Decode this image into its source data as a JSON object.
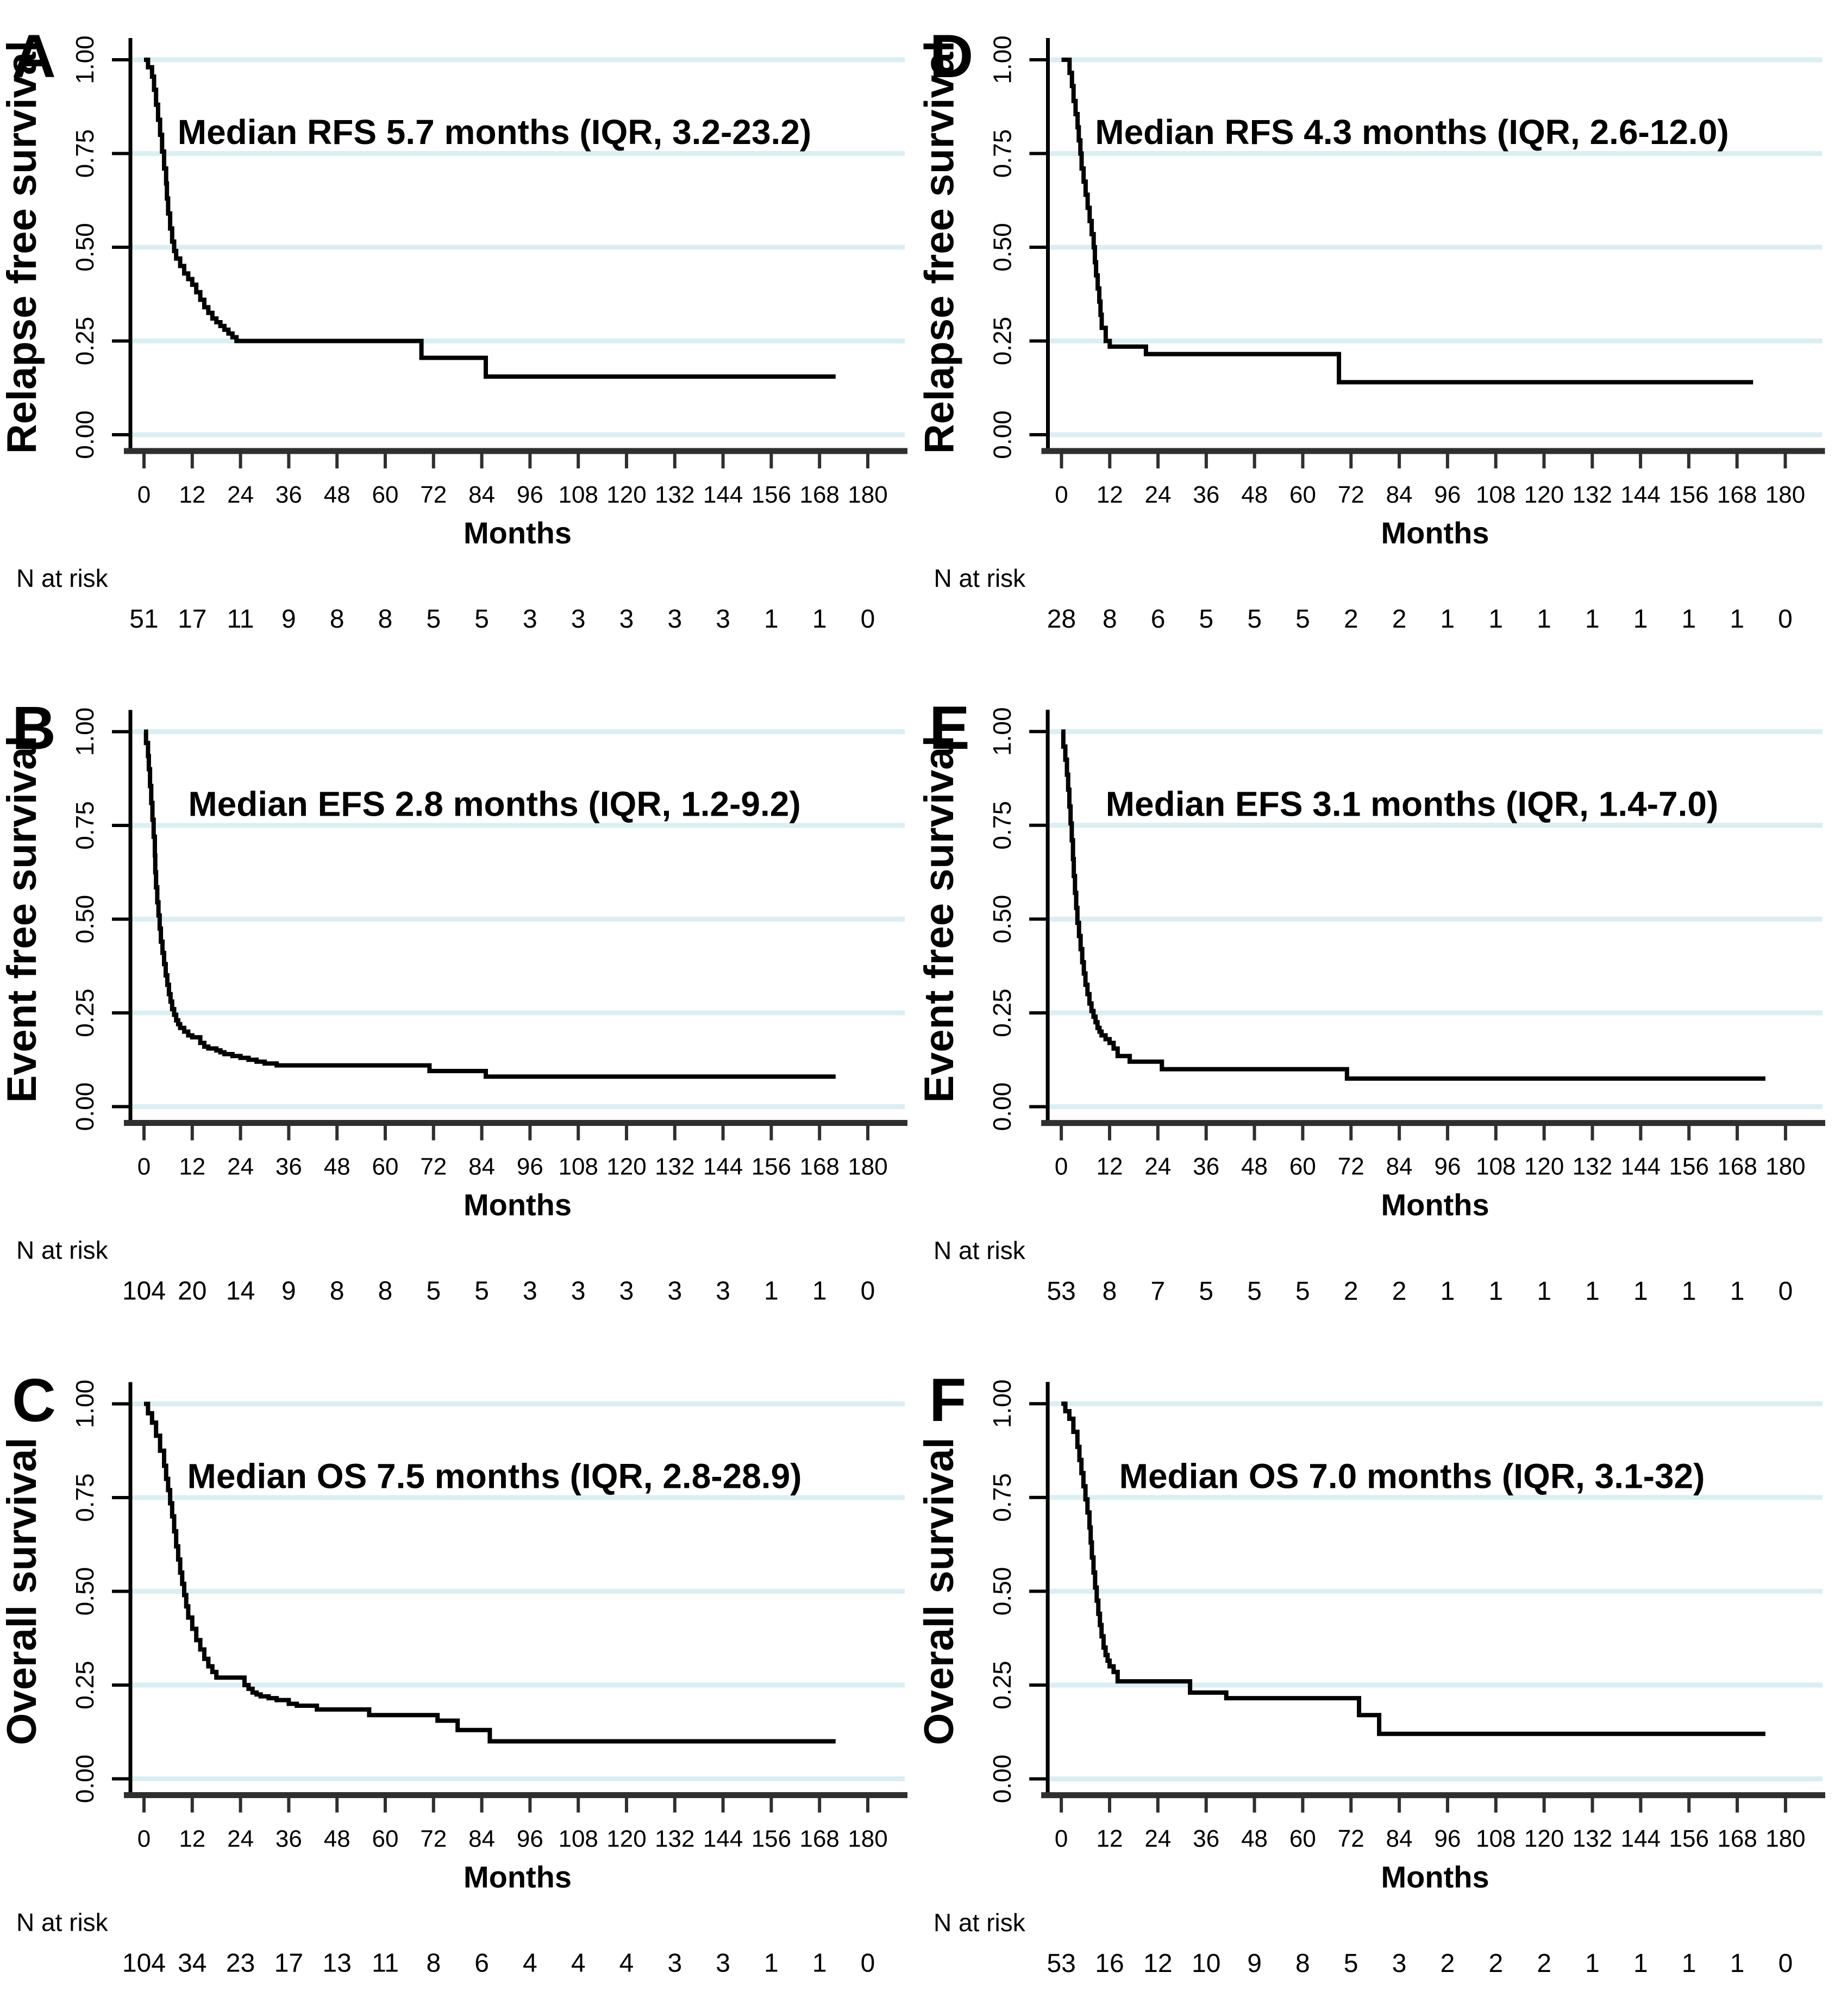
{
  "figure": {
    "type": "kaplan-meier-survival-figure",
    "background": "#ffffff",
    "colors": {
      "curve": "#000000",
      "axis": "#000000",
      "baseline": "#2f2f2f",
      "gridline": "#dceef1",
      "tick_label": "#1a1a1a",
      "text": "#000000"
    }
  },
  "chart_data": [
    {
      "type": "line",
      "panel_letter": "A",
      "ylabel": "Relapse free survival",
      "xlabel": "Months",
      "annotation": "Median RFS 5.7 months (IQR, 3.2-23.2)",
      "risk_label": "N at risk",
      "x_ticks": [
        0,
        12,
        24,
        36,
        48,
        60,
        72,
        84,
        96,
        108,
        120,
        132,
        144,
        156,
        168,
        180
      ],
      "y_tick_labels": [
        "0.00",
        "0.25",
        "0.50",
        "0.75",
        "1.00"
      ],
      "xlim": [
        0,
        180
      ],
      "ylim": [
        0,
        1
      ],
      "grid": true,
      "n_at_risk": [
        51,
        17,
        11,
        9,
        8,
        8,
        5,
        5,
        3,
        3,
        3,
        3,
        3,
        1,
        1,
        0
      ],
      "curve": [
        [
          0,
          1.0
        ],
        [
          1,
          0.98
        ],
        [
          2,
          0.955
        ],
        [
          2.5,
          0.92
        ],
        [
          3,
          0.88
        ],
        [
          3.5,
          0.84
        ],
        [
          4,
          0.8
        ],
        [
          4.5,
          0.755
        ],
        [
          5,
          0.71
        ],
        [
          5.5,
          0.67
        ],
        [
          5.7,
          0.63
        ],
        [
          6,
          0.59
        ],
        [
          6.5,
          0.55
        ],
        [
          7,
          0.515
        ],
        [
          7.5,
          0.49
        ],
        [
          8,
          0.47
        ],
        [
          9,
          0.45
        ],
        [
          10,
          0.43
        ],
        [
          11,
          0.415
        ],
        [
          12,
          0.4
        ],
        [
          13,
          0.38
        ],
        [
          14,
          0.36
        ],
        [
          15,
          0.34
        ],
        [
          16,
          0.325
        ],
        [
          17,
          0.31
        ],
        [
          18,
          0.3
        ],
        [
          19,
          0.29
        ],
        [
          20,
          0.28
        ],
        [
          21,
          0.27
        ],
        [
          22,
          0.26
        ],
        [
          23,
          0.25
        ],
        [
          69,
          0.205
        ],
        [
          85,
          0.155
        ],
        [
          172,
          0.155
        ]
      ]
    },
    {
      "type": "line",
      "panel_letter": "D",
      "ylabel": "Relapse free survival",
      "xlabel": "Months",
      "annotation": "Median RFS 4.3 months (IQR, 2.6-12.0)",
      "risk_label": "N at risk",
      "x_ticks": [
        0,
        12,
        24,
        36,
        48,
        60,
        72,
        84,
        96,
        108,
        120,
        132,
        144,
        156,
        168,
        180
      ],
      "y_tick_labels": [
        "0.00",
        "0.25",
        "0.50",
        "0.75",
        "1.00"
      ],
      "xlim": [
        0,
        180
      ],
      "ylim": [
        0,
        1
      ],
      "grid": true,
      "n_at_risk": [
        28,
        8,
        6,
        5,
        5,
        5,
        2,
        2,
        1,
        1,
        1,
        1,
        1,
        1,
        1,
        0
      ],
      "curve": [
        [
          0,
          1.0
        ],
        [
          2,
          0.965
        ],
        [
          2.6,
          0.93
        ],
        [
          3,
          0.89
        ],
        [
          3.5,
          0.855
        ],
        [
          4,
          0.82
        ],
        [
          4.3,
          0.785
        ],
        [
          4.7,
          0.75
        ],
        [
          5,
          0.71
        ],
        [
          5.5,
          0.675
        ],
        [
          6,
          0.64
        ],
        [
          6.5,
          0.605
        ],
        [
          7,
          0.57
        ],
        [
          7.5,
          0.535
        ],
        [
          8,
          0.5
        ],
        [
          8.3,
          0.46
        ],
        [
          8.6,
          0.425
        ],
        [
          9,
          0.39
        ],
        [
          9.4,
          0.355
        ],
        [
          9.7,
          0.32
        ],
        [
          10,
          0.285
        ],
        [
          11,
          0.25
        ],
        [
          12,
          0.235
        ],
        [
          21,
          0.215
        ],
        [
          69,
          0.14
        ],
        [
          172,
          0.14
        ]
      ]
    },
    {
      "type": "line",
      "panel_letter": "B",
      "ylabel": "Event free survival",
      "xlabel": "Months",
      "annotation": "Median EFS 2.8 months (IQR, 1.2-9.2)",
      "risk_label": "N at risk",
      "x_ticks": [
        0,
        12,
        24,
        36,
        48,
        60,
        72,
        84,
        96,
        108,
        120,
        132,
        144,
        156,
        168,
        180
      ],
      "y_tick_labels": [
        "0.00",
        "0.25",
        "0.50",
        "0.75",
        "1.00"
      ],
      "xlim": [
        0,
        180
      ],
      "ylim": [
        0,
        1
      ],
      "grid": true,
      "n_at_risk": [
        104,
        20,
        14,
        9,
        8,
        8,
        5,
        5,
        3,
        3,
        3,
        3,
        3,
        1,
        1,
        0
      ],
      "curve": [
        [
          0,
          1.0
        ],
        [
          0.5,
          0.97
        ],
        [
          1,
          0.935
        ],
        [
          1.2,
          0.9
        ],
        [
          1.5,
          0.855
        ],
        [
          1.8,
          0.81
        ],
        [
          2.1,
          0.765
        ],
        [
          2.4,
          0.72
        ],
        [
          2.7,
          0.67
        ],
        [
          2.8,
          0.625
        ],
        [
          3,
          0.585
        ],
        [
          3.3,
          0.545
        ],
        [
          3.6,
          0.51
        ],
        [
          3.9,
          0.475
        ],
        [
          4.2,
          0.44
        ],
        [
          4.6,
          0.41
        ],
        [
          5,
          0.38
        ],
        [
          5.4,
          0.35
        ],
        [
          5.8,
          0.325
        ],
        [
          6.2,
          0.3
        ],
        [
          6.6,
          0.28
        ],
        [
          7,
          0.26
        ],
        [
          7.5,
          0.245
        ],
        [
          8,
          0.23
        ],
        [
          8.5,
          0.22
        ],
        [
          9,
          0.21
        ],
        [
          10,
          0.2
        ],
        [
          11,
          0.19
        ],
        [
          12,
          0.185
        ],
        [
          14,
          0.17
        ],
        [
          15,
          0.16
        ],
        [
          16,
          0.155
        ],
        [
          18,
          0.15
        ],
        [
          19,
          0.145
        ],
        [
          20,
          0.14
        ],
        [
          22,
          0.135
        ],
        [
          24,
          0.13
        ],
        [
          26,
          0.125
        ],
        [
          28,
          0.12
        ],
        [
          30,
          0.115
        ],
        [
          33,
          0.11
        ],
        [
          71,
          0.095
        ],
        [
          85,
          0.08
        ],
        [
          172,
          0.08
        ]
      ]
    },
    {
      "type": "line",
      "panel_letter": "E",
      "ylabel": "Event free survival",
      "xlabel": "Months",
      "annotation": "Median EFS 3.1 months (IQR, 1.4-7.0)",
      "risk_label": "N at risk",
      "x_ticks": [
        0,
        12,
        24,
        36,
        48,
        60,
        72,
        84,
        96,
        108,
        120,
        132,
        144,
        156,
        168,
        180
      ],
      "y_tick_labels": [
        "0.00",
        "0.25",
        "0.50",
        "0.75",
        "1.00"
      ],
      "xlim": [
        0,
        180
      ],
      "ylim": [
        0,
        1
      ],
      "grid": true,
      "n_at_risk": [
        53,
        8,
        7,
        5,
        5,
        5,
        2,
        2,
        1,
        1,
        1,
        1,
        1,
        1,
        1,
        0
      ],
      "curve": [
        [
          0,
          1.0
        ],
        [
          0.5,
          0.96
        ],
        [
          1,
          0.925
        ],
        [
          1.4,
          0.885
        ],
        [
          1.7,
          0.845
        ],
        [
          2,
          0.8
        ],
        [
          2.3,
          0.755
        ],
        [
          2.6,
          0.71
        ],
        [
          2.9,
          0.66
        ],
        [
          3.1,
          0.615
        ],
        [
          3.4,
          0.57
        ],
        [
          3.7,
          0.53
        ],
        [
          4,
          0.49
        ],
        [
          4.4,
          0.455
        ],
        [
          4.8,
          0.42
        ],
        [
          5.2,
          0.385
        ],
        [
          5.6,
          0.355
        ],
        [
          6,
          0.325
        ],
        [
          6.5,
          0.3
        ],
        [
          7,
          0.275
        ],
        [
          7.5,
          0.255
        ],
        [
          8,
          0.24
        ],
        [
          8.5,
          0.225
        ],
        [
          9,
          0.21
        ],
        [
          9.5,
          0.2
        ],
        [
          10,
          0.19
        ],
        [
          11,
          0.18
        ],
        [
          12,
          0.17
        ],
        [
          13,
          0.155
        ],
        [
          14,
          0.135
        ],
        [
          17,
          0.12
        ],
        [
          25,
          0.1
        ],
        [
          71,
          0.075
        ],
        [
          175,
          0.075
        ]
      ]
    },
    {
      "type": "line",
      "panel_letter": "C",
      "ylabel": "Overall survival",
      "xlabel": "Months",
      "annotation": "Median OS 7.5 months (IQR, 2.8-28.9)",
      "risk_label": "N at risk",
      "x_ticks": [
        0,
        12,
        24,
        36,
        48,
        60,
        72,
        84,
        96,
        108,
        120,
        132,
        144,
        156,
        168,
        180
      ],
      "y_tick_labels": [
        "0.00",
        "0.25",
        "0.50",
        "0.75",
        "1.00"
      ],
      "xlim": [
        0,
        180
      ],
      "ylim": [
        0,
        1
      ],
      "grid": true,
      "n_at_risk": [
        104,
        34,
        23,
        17,
        13,
        11,
        8,
        6,
        4,
        4,
        4,
        3,
        3,
        1,
        1,
        0
      ],
      "curve": [
        [
          0,
          1.0
        ],
        [
          1,
          0.975
        ],
        [
          2,
          0.95
        ],
        [
          3,
          0.915
        ],
        [
          4,
          0.875
        ],
        [
          5,
          0.835
        ],
        [
          5.5,
          0.8
        ],
        [
          6,
          0.77
        ],
        [
          6.5,
          0.735
        ],
        [
          7,
          0.7
        ],
        [
          7.5,
          0.66
        ],
        [
          8,
          0.62
        ],
        [
          8.5,
          0.585
        ],
        [
          9,
          0.55
        ],
        [
          9.5,
          0.52
        ],
        [
          10,
          0.49
        ],
        [
          10.5,
          0.46
        ],
        [
          11,
          0.43
        ],
        [
          12,
          0.4
        ],
        [
          13,
          0.37
        ],
        [
          14,
          0.345
        ],
        [
          15,
          0.32
        ],
        [
          16,
          0.3
        ],
        [
          17,
          0.285
        ],
        [
          18,
          0.27
        ],
        [
          25,
          0.25
        ],
        [
          26,
          0.24
        ],
        [
          27,
          0.23
        ],
        [
          28,
          0.225
        ],
        [
          29,
          0.22
        ],
        [
          31,
          0.215
        ],
        [
          33,
          0.21
        ],
        [
          36,
          0.2
        ],
        [
          38,
          0.195
        ],
        [
          43,
          0.185
        ],
        [
          56,
          0.17
        ],
        [
          73,
          0.155
        ],
        [
          78,
          0.13
        ],
        [
          86,
          0.1
        ],
        [
          172,
          0.1
        ]
      ]
    },
    {
      "type": "line",
      "panel_letter": "F",
      "ylabel": "Overall survival",
      "xlabel": "Months",
      "annotation": "Median OS 7.0 months (IQR, 3.1-32)",
      "risk_label": "N at risk",
      "x_ticks": [
        0,
        12,
        24,
        36,
        48,
        60,
        72,
        84,
        96,
        108,
        120,
        132,
        144,
        156,
        168,
        180
      ],
      "y_tick_labels": [
        "0.00",
        "0.25",
        "0.50",
        "0.75",
        "1.00"
      ],
      "xlim": [
        0,
        180
      ],
      "ylim": [
        0,
        1
      ],
      "grid": true,
      "n_at_risk": [
        53,
        16,
        12,
        10,
        9,
        8,
        5,
        3,
        2,
        2,
        2,
        1,
        1,
        1,
        1,
        0
      ],
      "curve": [
        [
          0,
          1.0
        ],
        [
          1,
          0.98
        ],
        [
          2,
          0.96
        ],
        [
          3,
          0.925
        ],
        [
          4,
          0.885
        ],
        [
          4.5,
          0.85
        ],
        [
          5,
          0.815
        ],
        [
          5.5,
          0.78
        ],
        [
          6,
          0.745
        ],
        [
          6.5,
          0.71
        ],
        [
          7,
          0.67
        ],
        [
          7.3,
          0.63
        ],
        [
          7.6,
          0.59
        ],
        [
          8,
          0.55
        ],
        [
          8.4,
          0.51
        ],
        [
          8.8,
          0.475
        ],
        [
          9.2,
          0.44
        ],
        [
          9.6,
          0.41
        ],
        [
          10,
          0.38
        ],
        [
          10.5,
          0.35
        ],
        [
          11,
          0.33
        ],
        [
          11.5,
          0.315
        ],
        [
          12,
          0.3
        ],
        [
          13,
          0.285
        ],
        [
          14,
          0.26
        ],
        [
          32,
          0.23
        ],
        [
          41,
          0.215
        ],
        [
          74,
          0.17
        ],
        [
          79,
          0.12
        ],
        [
          175,
          0.12
        ]
      ]
    }
  ]
}
